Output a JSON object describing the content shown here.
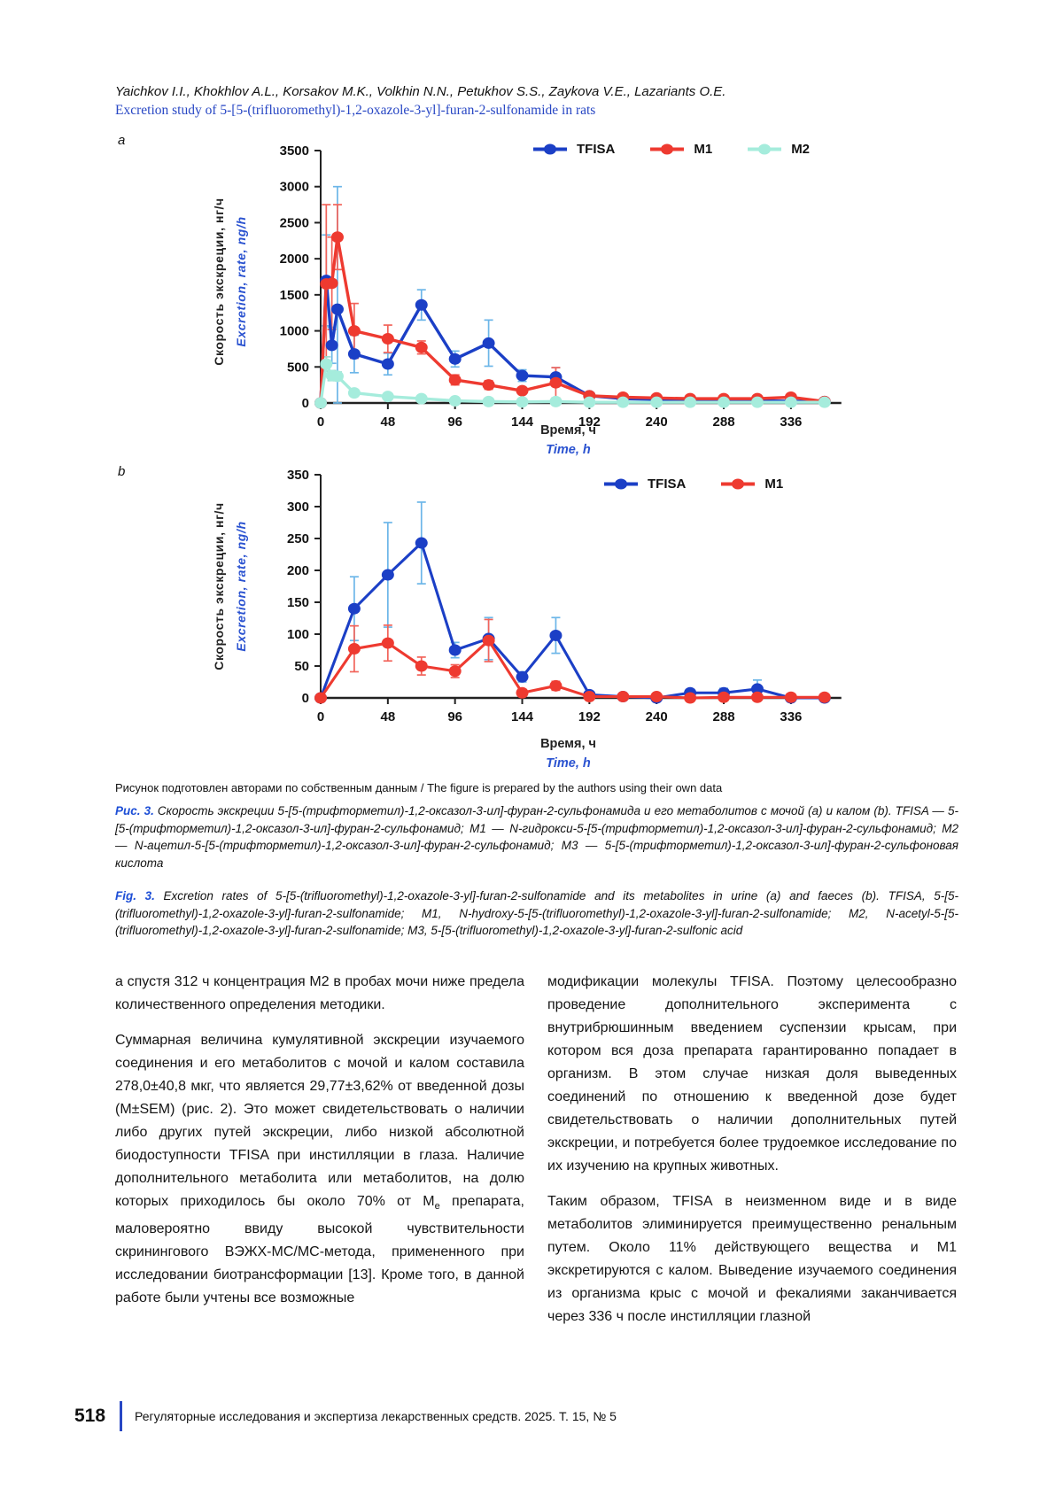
{
  "header": {
    "authors": "Yaichkov I.I., Khokhlov A.L., Korsakov M.K., Volkhin N.N., Petukhov S.S., Zaykova V.E., Lazariants O.E.",
    "title": "Excretion study of 5-[5-(trifluoromethyl)-1,2-oxazole-3-yl]-furan-2-sulfonamide in rats"
  },
  "chart_data": [
    {
      "type": "line",
      "panel": "a",
      "xlabel_ru": "Время, ч",
      "xlabel_en": "Time, h",
      "ylabel_ru": "Скорость экскреции, нг/ч",
      "ylabel_en": "Excretion, rate, ng/h",
      "xlim": [
        0,
        372
      ],
      "ylim": [
        0,
        3500
      ],
      "xticks": [
        0,
        48,
        96,
        144,
        192,
        240,
        288,
        336
      ],
      "yticks": [
        0,
        500,
        1000,
        1500,
        2000,
        2500,
        3000,
        3500
      ],
      "legend_position": "top-right",
      "grid": false,
      "x": [
        0,
        4,
        8,
        12,
        24,
        48,
        72,
        96,
        120,
        144,
        168,
        192,
        216,
        240,
        264,
        288,
        312,
        336,
        360
      ],
      "series": [
        {
          "name": "TFISA",
          "color": "#1b3fc6",
          "err_color": "#6cb6e8",
          "values": [
            0,
            1700,
            800,
            1300,
            680,
            540,
            1360,
            610,
            830,
            380,
            360,
            100,
            60,
            50,
            40,
            40,
            30,
            25,
            20
          ],
          "err": [
            0,
            630,
            250,
            1700,
            260,
            150,
            210,
            110,
            320,
            80,
            130,
            30,
            20,
            15,
            15,
            15,
            10,
            10,
            5
          ]
        },
        {
          "name": "M1",
          "color": "#ee3a30",
          "err_color": "#f2635a",
          "values": [
            0,
            1650,
            1660,
            2300,
            1000,
            890,
            770,
            320,
            250,
            170,
            280,
            100,
            80,
            70,
            60,
            60,
            60,
            80,
            20
          ],
          "err": [
            0,
            1100,
            640,
            450,
            380,
            190,
            90,
            70,
            60,
            40,
            210,
            30,
            25,
            20,
            20,
            20,
            20,
            25,
            10
          ]
        },
        {
          "name": "M2",
          "color": "#a5ecdc",
          "err_color": "#9adcd0",
          "values": [
            0,
            540,
            380,
            370,
            140,
            90,
            60,
            30,
            20,
            15,
            20,
            10,
            10,
            10,
            10,
            10,
            10,
            10,
            10
          ],
          "err": [
            0,
            100,
            70,
            60,
            40,
            20,
            15,
            10,
            5,
            5,
            5,
            3,
            3,
            3,
            3,
            3,
            3,
            3,
            3
          ]
        }
      ]
    },
    {
      "type": "line",
      "panel": "b",
      "xlabel_ru": "Время, ч",
      "xlabel_en": "Time, h",
      "ylabel_ru": "Скорость экскреции, нг/ч",
      "ylabel_en": "Excretion, rate, ng/h",
      "xlim": [
        0,
        372
      ],
      "ylim": [
        0,
        350
      ],
      "xticks": [
        0,
        48,
        96,
        144,
        192,
        240,
        288,
        336
      ],
      "yticks": [
        0,
        50,
        100,
        150,
        200,
        250,
        300,
        350
      ],
      "legend_position": "top-right",
      "grid": false,
      "x": [
        0,
        24,
        48,
        72,
        96,
        120,
        144,
        168,
        192,
        216,
        240,
        264,
        288,
        312,
        336,
        360
      ],
      "series": [
        {
          "name": "TFISA",
          "color": "#1b3fc6",
          "err_color": "#6cb6e8",
          "values": [
            0,
            140,
            193,
            243,
            75,
            93,
            33,
            98,
            5,
            2,
            0,
            8,
            8,
            14,
            0,
            0
          ],
          "err": [
            0,
            50,
            82,
            64,
            12,
            33,
            8,
            28,
            3,
            2,
            2,
            5,
            7,
            14,
            2,
            1
          ]
        },
        {
          "name": "M1",
          "color": "#ee3a30",
          "err_color": "#f2635a",
          "values": [
            0,
            77,
            86,
            50,
            42,
            90,
            8,
            19,
            2,
            2,
            2,
            0,
            1,
            1,
            1,
            1
          ],
          "err": [
            0,
            36,
            28,
            14,
            10,
            33,
            5,
            7,
            2,
            1,
            2,
            1,
            2,
            2,
            1,
            1
          ]
        }
      ]
    }
  ],
  "captions": {
    "source_note": "Рисунок подготовлен авторами по собственным данным / The figure is prepared by the authors using their own data",
    "ru_label": "Рис. 3.",
    "ru_text": " Скорость экскреции 5-[5-(трифторметил)-1,2-оксазол-3-ил]-фуран-2-сульфонамида и его метаболитов с мочой (a) и калом (b). TFISA — 5-[5-(трифторметил)-1,2-оксазол-3-ил]-фуран-2-сульфонамид; M1 — N-гидрокси-5-[5-(трифторметил)-1,2-оксазол-3-ил]-фуран-2-сульфонамид; M2 — N-ацетил-5-[5-(трифторметил)-1,2-оксазол-3-ил]-фуран-2-сульфонамид; M3 — 5-[5-(трифторметил)-1,2-оксазол-3-ил]-фуран-2-сульфоновая кислота",
    "en_label": "Fig. 3.",
    "en_text": " Excretion rates of 5-[5-(trifluoromethyl)-1,2-oxazole-3-yl]-furan-2-sulfonamide and its metabolites in urine (a) and faeces (b). TFISA, 5-[5-(trifluoromethyl)-1,2-oxazole-3-yl]-furan-2-sulfonamide; M1, N-hydroxy-5-[5-(trifluoromethyl)-1,2-oxazole-3-yl]-furan-2-sulfonamide; M2, N-acetyl-5-[5-(trifluoromethyl)-1,2-oxazole-3-yl]-furan-2-sulfonamide; M3, 5-[5-(trifluoromethyl)-1,2-oxazole-3-yl]-furan-2-sulfonic acid"
  },
  "body": {
    "left": {
      "p1": "а спустя 312 ч концентрация M2 в пробах мочи ниже предела количественного определения методики.",
      "p2_pre": "Суммарная величина кумулятивной экскреции изучаемого соединения и его метаболитов с мочой и калом составила 278,0±40,8 мкг, что является 29,77±3,62% от введенной дозы (M±SEM) (рис. 2). Это может свидетельствовать о наличии либо других путей экскреции, либо низкой абсолютной биодоступности TFISA при инстилляции в глаза. Наличие дополнительного метаболита или метаболитов, на долю которых приходилось бы около 70% от M",
      "p2_sub": "е",
      "p2_post": " препарата, маловероятно ввиду высокой чувствительности скринингового ВЭЖХ-МС/МС-метода, примененного при исследовании биотрансформации [13]. Кроме того, в данной работе были учтены все возможные"
    },
    "right": {
      "p1": "модификации молекулы TFISA. Поэтому целесообразно проведение дополнительного эксперимента с внутрибрюшинным введением суспензии крысам, при котором вся доза препарата гарантированно попадает в организм. В этом случае низкая доля выведенных соединений по отношению к введенной дозе будет свидетельствовать о наличии дополнительных путей экскреции, и потребуется более трудоемкое исследование по их изучению на крупных животных.",
      "p2": "Таким образом, TFISA в неизменном виде и в виде метаболитов элиминируется преимущественно ренальным путем. Около 11% действующего вещества и M1 экскретируются с калом. Выведение изучаемого соединения из организма крыс с мочой и фекалиями заканчивается через 336 ч после инстилляции глазной"
    }
  },
  "footer": {
    "page_number": "518",
    "journal": "Регуляторные исследования и экспертиза лекарственных средств. 2025. Т. 15, № 5"
  }
}
